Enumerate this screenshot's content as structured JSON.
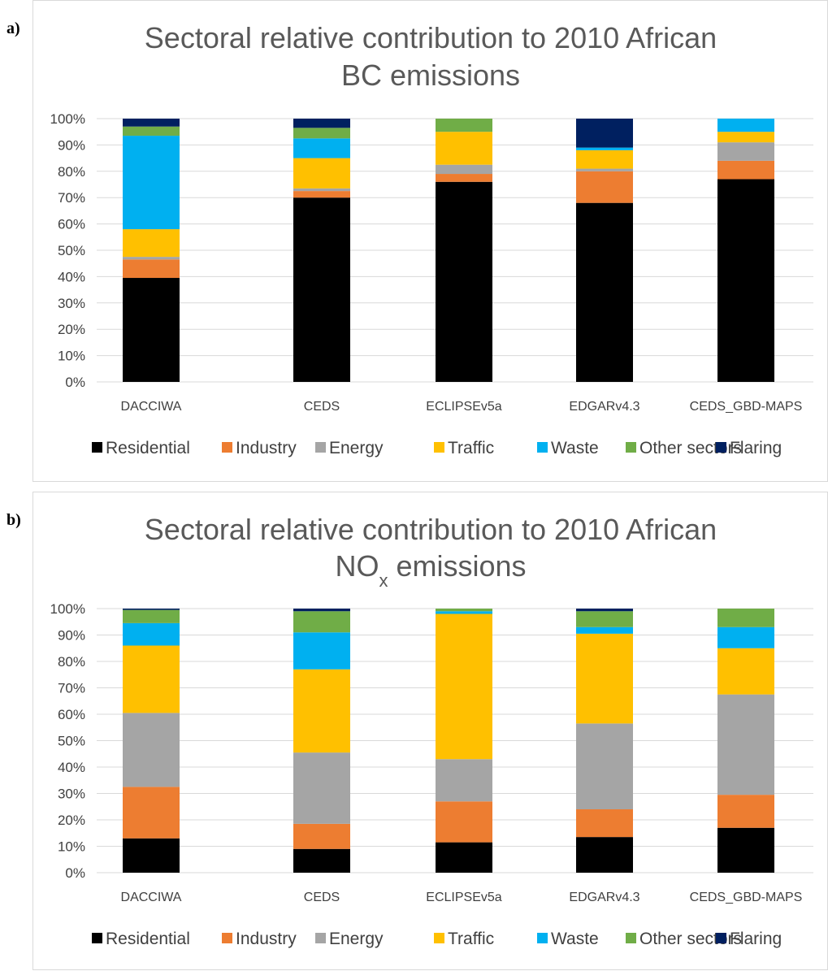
{
  "panels": [
    {
      "letter": "a)"
    },
    {
      "letter": "b)"
    }
  ],
  "colors": {
    "Residential": "#000000",
    "Industry": "#ed7d31",
    "Energy": "#a5a5a5",
    "Traffic": "#ffc000",
    "Waste": "#00b0f0",
    "Other sectors": "#70ad47",
    "Flaring": "#002060"
  },
  "chart_data": [
    {
      "type": "bar",
      "stacked": true,
      "title_lines": [
        "Sectoral relative contribution to 2010 African",
        "BC emissions"
      ],
      "title_sub": "",
      "categories": [
        "DACCIWA",
        "CEDS",
        "ECLIPSEv5a",
        "EDGARv4.3",
        "CEDS_GBD-MAPS"
      ],
      "yticks": [
        "0%",
        "10%",
        "20%",
        "30%",
        "40%",
        "50%",
        "60%",
        "70%",
        "80%",
        "90%",
        "100%"
      ],
      "ylim": [
        0,
        100
      ],
      "grid": true,
      "legend_position": "bottom",
      "series": [
        {
          "name": "Residential",
          "values": [
            39.5,
            70,
            76,
            68,
            77
          ]
        },
        {
          "name": "Industry",
          "values": [
            7,
            2.5,
            3,
            12,
            7
          ]
        },
        {
          "name": "Energy",
          "values": [
            1,
            1,
            3.5,
            1,
            7
          ]
        },
        {
          "name": "Traffic",
          "values": [
            10.5,
            11.5,
            12.5,
            7,
            4
          ]
        },
        {
          "name": "Waste",
          "values": [
            35.5,
            7.5,
            0,
            1,
            5
          ]
        },
        {
          "name": "Other sectors",
          "values": [
            3.5,
            4,
            5,
            0,
            0
          ]
        },
        {
          "name": "Flaring",
          "values": [
            3,
            3.5,
            0,
            11,
            0
          ]
        }
      ]
    },
    {
      "type": "bar",
      "stacked": true,
      "title_lines": [
        "Sectoral relative contribution to 2010 African",
        "NO"
      ],
      "title_sub": "x",
      "title_after_sub": " emissions",
      "categories": [
        "DACCIWA",
        "CEDS",
        "ECLIPSEv5a",
        "EDGARv4.3",
        "CEDS_GBD-MAPS"
      ],
      "yticks": [
        "0%",
        "10%",
        "20%",
        "30%",
        "40%",
        "50%",
        "60%",
        "70%",
        "80%",
        "90%",
        "100%"
      ],
      "ylim": [
        0,
        100
      ],
      "grid": true,
      "legend_position": "bottom",
      "series": [
        {
          "name": "Residential",
          "values": [
            13,
            9,
            11.5,
            13.5,
            17
          ]
        },
        {
          "name": "Industry",
          "values": [
            19.5,
            9.5,
            15.5,
            10.5,
            12.5
          ]
        },
        {
          "name": "Energy",
          "values": [
            28,
            27,
            16,
            32.5,
            38
          ]
        },
        {
          "name": "Traffic",
          "values": [
            25.5,
            31.5,
            55,
            34,
            17.5
          ]
        },
        {
          "name": "Waste",
          "values": [
            8.5,
            14,
            1,
            2.5,
            8
          ]
        },
        {
          "name": "Other sectors",
          "values": [
            5,
            8,
            1,
            6,
            7
          ]
        },
        {
          "name": "Flaring",
          "values": [
            0.5,
            1,
            0,
            1,
            0
          ]
        }
      ]
    }
  ]
}
